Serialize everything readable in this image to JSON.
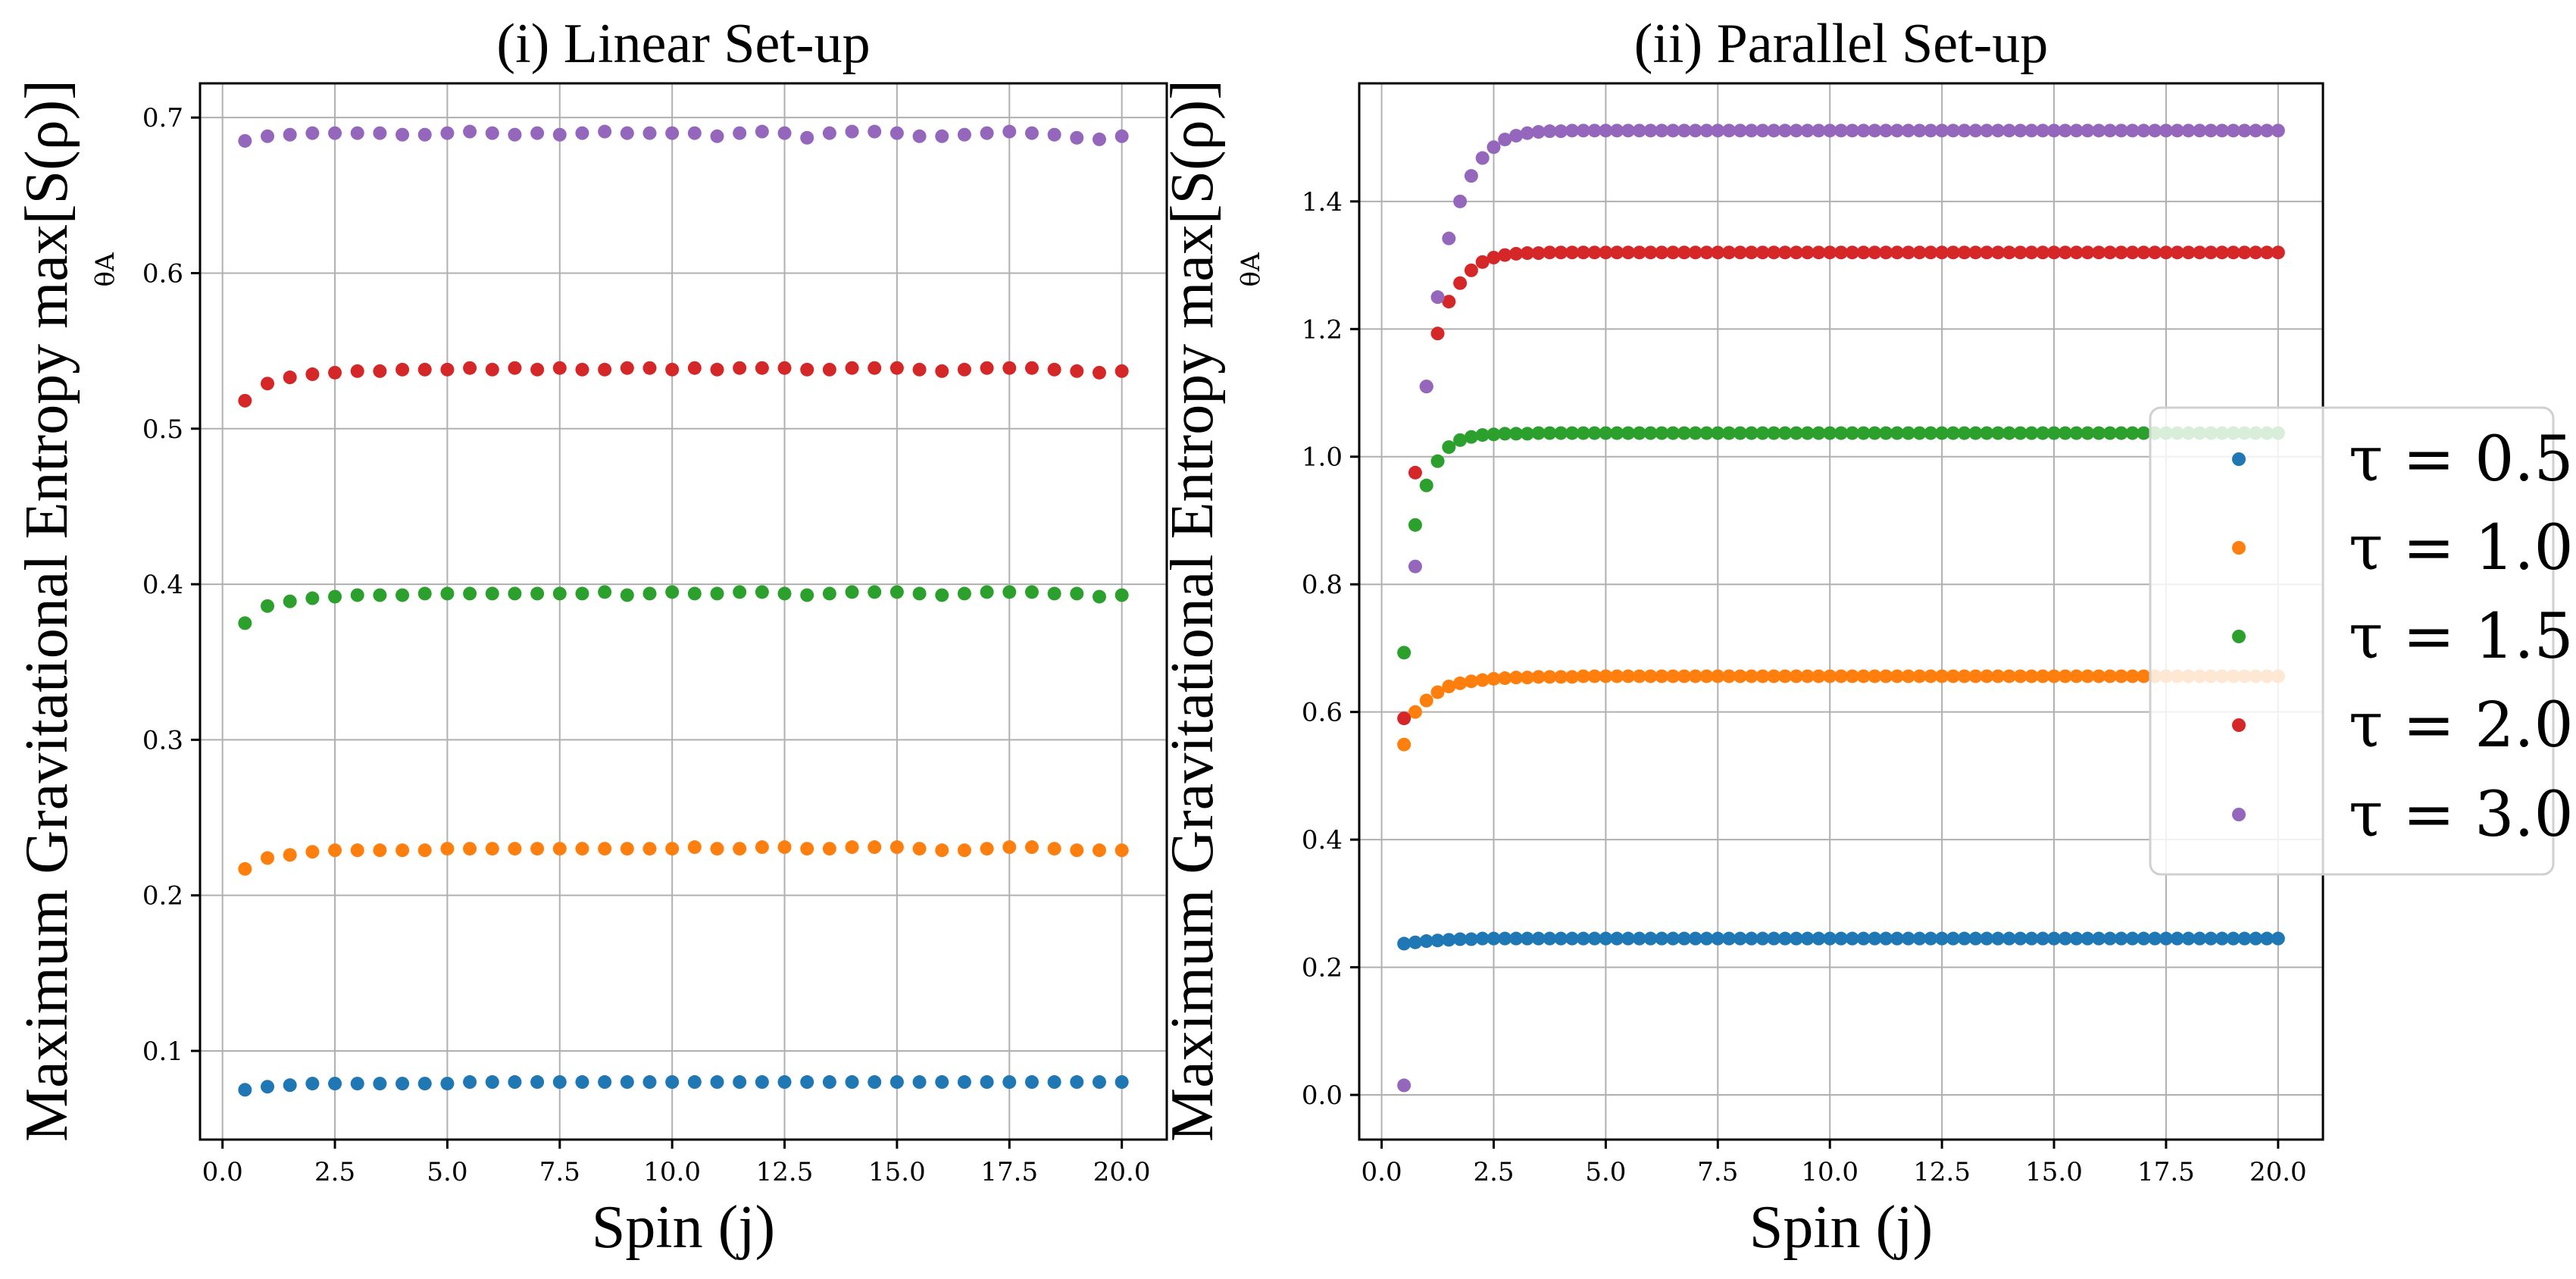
{
  "legend": {
    "entries": [
      {
        "label": "τ = 0.5",
        "color": "#1f77b4"
      },
      {
        "label": "τ = 1.0",
        "color": "#ff7f0e"
      },
      {
        "label": "τ = 1.5",
        "color": "#2ca02c"
      },
      {
        "label": "τ = 2.0",
        "color": "#d62728"
      },
      {
        "label": "τ = 3.0",
        "color": "#9467bd"
      }
    ]
  },
  "chart_data": [
    {
      "type": "scatter",
      "title": "(i) Linear Set-up",
      "xlabel": "Spin (j)",
      "ylabel": "Maximum Gravitational Entropy max[S(ρ)]",
      "ylabel_sub": "θA",
      "xlim": [
        -0.5,
        21.0
      ],
      "ylim": [
        0.043,
        0.722
      ],
      "xticks": [
        0,
        2.5,
        5,
        7.5,
        10,
        12.5,
        15,
        17.5,
        20
      ],
      "xtick_labels": [
        "0.0",
        "2.5",
        "5.0",
        "7.5",
        "10.0",
        "12.5",
        "15.0",
        "17.5",
        "20.0"
      ],
      "yticks": [
        0.1,
        0.2,
        0.3,
        0.4,
        0.5,
        0.6,
        0.7
      ],
      "ytick_labels": [
        "0.1",
        "0.2",
        "0.3",
        "0.4",
        "0.5",
        "0.6",
        "0.7"
      ],
      "x": {
        "start": 0.5,
        "step": 0.5,
        "count": 40
      },
      "series": [
        {
          "name": "τ = 0.5",
          "color": "#1f77b4",
          "values": [
            0.075,
            0.077,
            0.078,
            0.079,
            0.079,
            0.079,
            0.079,
            0.079,
            0.079,
            0.079,
            0.08,
            0.08,
            0.08,
            0.08,
            0.08,
            0.08,
            0.08,
            0.08,
            0.08,
            0.08,
            0.08,
            0.08,
            0.08,
            0.08,
            0.08,
            0.08,
            0.08,
            0.08,
            0.08,
            0.08,
            0.08,
            0.08,
            0.08,
            0.08,
            0.08,
            0.08,
            0.08,
            0.08,
            0.08,
            0.08
          ]
        },
        {
          "name": "τ = 1.0",
          "color": "#ff7f0e",
          "values": [
            0.217,
            0.224,
            0.226,
            0.228,
            0.229,
            0.229,
            0.229,
            0.229,
            0.229,
            0.23,
            0.23,
            0.23,
            0.23,
            0.23,
            0.23,
            0.23,
            0.23,
            0.23,
            0.23,
            0.23,
            0.231,
            0.23,
            0.23,
            0.231,
            0.231,
            0.23,
            0.23,
            0.231,
            0.231,
            0.231,
            0.23,
            0.229,
            0.229,
            0.23,
            0.231,
            0.231,
            0.23,
            0.229,
            0.229,
            0.229
          ]
        },
        {
          "name": "τ = 1.5",
          "color": "#2ca02c",
          "values": [
            0.375,
            0.386,
            0.389,
            0.391,
            0.392,
            0.393,
            0.393,
            0.393,
            0.394,
            0.394,
            0.394,
            0.394,
            0.394,
            0.394,
            0.394,
            0.394,
            0.395,
            0.393,
            0.394,
            0.395,
            0.394,
            0.394,
            0.395,
            0.395,
            0.394,
            0.393,
            0.394,
            0.395,
            0.395,
            0.395,
            0.394,
            0.393,
            0.394,
            0.395,
            0.395,
            0.395,
            0.394,
            0.394,
            0.392,
            0.393
          ]
        },
        {
          "name": "τ = 2.0",
          "color": "#d62728",
          "values": [
            0.518,
            0.529,
            0.533,
            0.535,
            0.536,
            0.537,
            0.537,
            0.538,
            0.538,
            0.538,
            0.539,
            0.538,
            0.539,
            0.538,
            0.539,
            0.538,
            0.538,
            0.539,
            0.539,
            0.538,
            0.539,
            0.538,
            0.539,
            0.539,
            0.539,
            0.538,
            0.538,
            0.539,
            0.539,
            0.539,
            0.538,
            0.537,
            0.538,
            0.539,
            0.539,
            0.539,
            0.538,
            0.537,
            0.536,
            0.537
          ]
        },
        {
          "name": "τ = 3.0",
          "color": "#9467bd",
          "values": [
            0.685,
            0.688,
            0.689,
            0.69,
            0.69,
            0.69,
            0.69,
            0.689,
            0.689,
            0.69,
            0.691,
            0.69,
            0.689,
            0.69,
            0.689,
            0.69,
            0.691,
            0.69,
            0.69,
            0.69,
            0.69,
            0.688,
            0.69,
            0.691,
            0.69,
            0.687,
            0.69,
            0.691,
            0.691,
            0.69,
            0.688,
            0.688,
            0.689,
            0.69,
            0.691,
            0.69,
            0.689,
            0.687,
            0.686,
            0.688
          ]
        }
      ]
    },
    {
      "type": "scatter",
      "title": "(ii) Parallel Set-up",
      "xlabel": "Spin (j)",
      "ylabel": "Maximum Gravitational Entropy max[S(ρ)]",
      "ylabel_sub": "θA",
      "xlim": [
        -0.5,
        21.0
      ],
      "ylim": [
        -0.07,
        1.585
      ],
      "xticks": [
        0,
        2.5,
        5,
        7.5,
        10,
        12.5,
        15,
        17.5,
        20
      ],
      "xtick_labels": [
        "0.0",
        "2.5",
        "5.0",
        "7.5",
        "10.0",
        "12.5",
        "15.0",
        "17.5",
        "20.0"
      ],
      "yticks": [
        0.0,
        0.2,
        0.4,
        0.6,
        0.8,
        1.0,
        1.2,
        1.4
      ],
      "ytick_labels": [
        "0.0",
        "0.2",
        "0.4",
        "0.6",
        "0.8",
        "1.0",
        "1.2",
        "1.4"
      ],
      "x": {
        "start": 0.5,
        "step": 0.25,
        "count": 79
      },
      "series": [
        {
          "name": "τ = 0.5",
          "color": "#1f77b4",
          "values": [
            0.237,
            0.239,
            0.241,
            0.242,
            0.243,
            0.244,
            0.244,
            0.245,
            0.245,
            0.245,
            0.245,
            0.245,
            0.245,
            0.245,
            0.245,
            0.245,
            0.245,
            0.245,
            0.245,
            0.245,
            0.245,
            0.245,
            0.245,
            0.245,
            0.245,
            0.245,
            0.245,
            0.245,
            0.245,
            0.245,
            0.245,
            0.245,
            0.245,
            0.245,
            0.245,
            0.245,
            0.245,
            0.245,
            0.245,
            0.245,
            0.245,
            0.245,
            0.245,
            0.245,
            0.245,
            0.245,
            0.245,
            0.245,
            0.245,
            0.245,
            0.245,
            0.245,
            0.245,
            0.245,
            0.245,
            0.245,
            0.245,
            0.245,
            0.245,
            0.245,
            0.245,
            0.245,
            0.245,
            0.245,
            0.245,
            0.245,
            0.245,
            0.245,
            0.245,
            0.245,
            0.245,
            0.245,
            0.245,
            0.245,
            0.245,
            0.245,
            0.245,
            0.245,
            0.245
          ]
        },
        {
          "name": "τ = 1.0",
          "color": "#ff7f0e",
          "values": [
            0.549,
            0.6,
            0.618,
            0.631,
            0.64,
            0.645,
            0.648,
            0.65,
            0.652,
            0.653,
            0.654,
            0.654,
            0.655,
            0.655,
            0.655,
            0.655,
            0.656,
            0.656,
            0.656,
            0.656,
            0.656,
            0.656,
            0.656,
            0.656,
            0.656,
            0.656,
            0.656,
            0.656,
            0.656,
            0.656,
            0.656,
            0.656,
            0.656,
            0.656,
            0.656,
            0.656,
            0.656,
            0.656,
            0.656,
            0.656,
            0.656,
            0.656,
            0.656,
            0.656,
            0.656,
            0.656,
            0.656,
            0.656,
            0.656,
            0.656,
            0.656,
            0.656,
            0.656,
            0.656,
            0.656,
            0.656,
            0.656,
            0.656,
            0.656,
            0.656,
            0.656,
            0.656,
            0.656,
            0.656,
            0.656,
            0.656,
            0.656,
            0.656,
            0.656,
            0.656,
            0.656,
            0.656,
            0.656,
            0.656,
            0.656,
            0.656,
            0.656,
            0.656,
            0.656
          ]
        },
        {
          "name": "τ = 1.5",
          "color": "#2ca02c",
          "values": [
            0.693,
            0.893,
            0.955,
            0.993,
            1.015,
            1.026,
            1.031,
            1.034,
            1.035,
            1.036,
            1.036,
            1.036,
            1.037,
            1.037,
            1.037,
            1.037,
            1.037,
            1.037,
            1.037,
            1.037,
            1.037,
            1.037,
            1.037,
            1.037,
            1.037,
            1.037,
            1.037,
            1.037,
            1.037,
            1.037,
            1.037,
            1.037,
            1.037,
            1.037,
            1.037,
            1.037,
            1.037,
            1.037,
            1.037,
            1.037,
            1.037,
            1.037,
            1.037,
            1.037,
            1.037,
            1.037,
            1.037,
            1.037,
            1.037,
            1.037,
            1.037,
            1.037,
            1.037,
            1.037,
            1.037,
            1.037,
            1.037,
            1.037,
            1.037,
            1.037,
            1.037,
            1.037,
            1.037,
            1.037,
            1.037,
            1.037,
            1.037,
            1.037,
            1.037,
            1.037,
            1.037,
            1.037,
            1.037,
            1.037,
            1.037,
            1.037,
            1.037,
            1.037,
            1.037
          ]
        },
        {
          "name": "τ = 2.0",
          "color": "#d62728",
          "values": [
            0.59,
            0.975,
            1.11,
            1.193,
            1.243,
            1.272,
            1.292,
            1.305,
            1.312,
            1.316,
            1.318,
            1.319,
            1.319,
            1.32,
            1.32,
            1.32,
            1.32,
            1.32,
            1.32,
            1.32,
            1.32,
            1.32,
            1.32,
            1.32,
            1.32,
            1.32,
            1.32,
            1.32,
            1.32,
            1.32,
            1.32,
            1.32,
            1.32,
            1.32,
            1.32,
            1.32,
            1.32,
            1.32,
            1.32,
            1.32,
            1.32,
            1.32,
            1.32,
            1.32,
            1.32,
            1.32,
            1.32,
            1.32,
            1.32,
            1.32,
            1.32,
            1.32,
            1.32,
            1.32,
            1.32,
            1.32,
            1.32,
            1.32,
            1.32,
            1.32,
            1.32,
            1.32,
            1.32,
            1.32,
            1.32,
            1.32,
            1.32,
            1.32,
            1.32,
            1.32,
            1.32,
            1.32,
            1.32,
            1.32,
            1.32,
            1.32,
            1.32,
            1.32,
            1.32
          ]
        },
        {
          "name": "τ = 3.0",
          "color": "#9467bd",
          "values": [
            0.015,
            0.828,
            1.11,
            1.25,
            1.342,
            1.4,
            1.44,
            1.468,
            1.485,
            1.497,
            1.503,
            1.507,
            1.509,
            1.51,
            1.51,
            1.511,
            1.511,
            1.511,
            1.511,
            1.511,
            1.511,
            1.511,
            1.511,
            1.511,
            1.511,
            1.511,
            1.511,
            1.511,
            1.511,
            1.511,
            1.511,
            1.511,
            1.511,
            1.511,
            1.511,
            1.511,
            1.511,
            1.511,
            1.511,
            1.511,
            1.511,
            1.511,
            1.511,
            1.511,
            1.511,
            1.511,
            1.511,
            1.511,
            1.511,
            1.511,
            1.511,
            1.511,
            1.511,
            1.511,
            1.511,
            1.511,
            1.511,
            1.511,
            1.511,
            1.511,
            1.511,
            1.511,
            1.511,
            1.511,
            1.511,
            1.511,
            1.511,
            1.511,
            1.511,
            1.511,
            1.511,
            1.511,
            1.511,
            1.511,
            1.511,
            1.511,
            1.511,
            1.511,
            1.511
          ]
        }
      ]
    }
  ]
}
